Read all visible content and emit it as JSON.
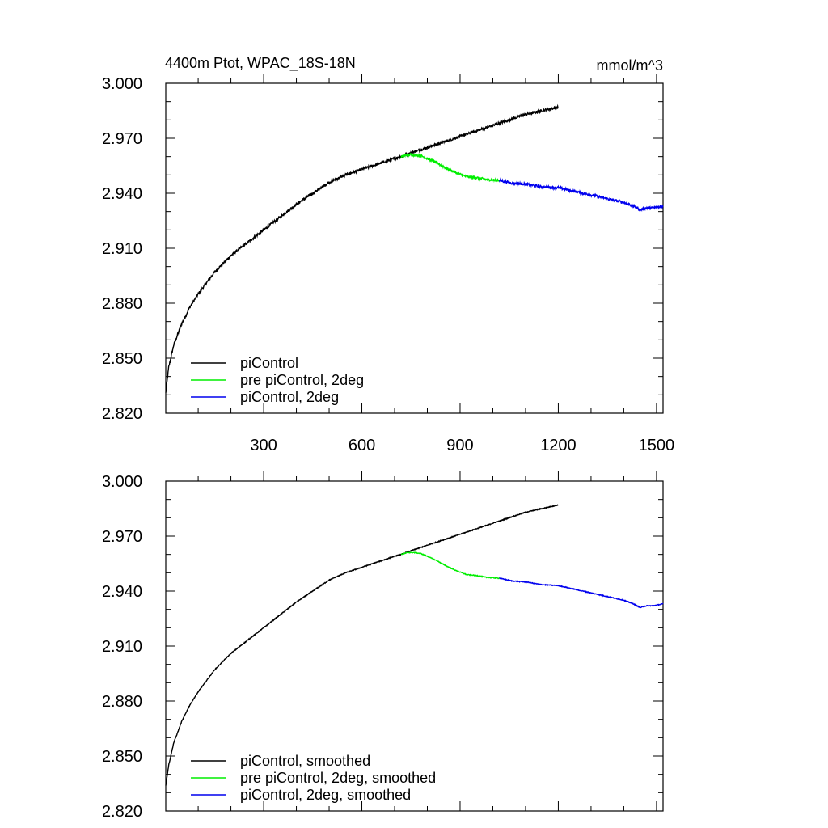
{
  "chart_data": [
    {
      "type": "line",
      "title": "4400m Ptot, WPAC_18S-18N",
      "units": "mmol/m^3",
      "xlim": [
        1,
        1520
      ],
      "ylim": [
        2.82,
        3.0
      ],
      "xticks": [
        300,
        600,
        900,
        1200,
        1500
      ],
      "xtick_labels": [
        "300",
        "600",
        "900",
        "1200",
        "1500"
      ],
      "yticks": [
        2.82,
        2.85,
        2.88,
        2.91,
        2.94,
        2.97,
        3.0
      ],
      "ytick_labels": [
        "2.820",
        "2.850",
        "2.880",
        "2.910",
        "2.940",
        "2.970",
        "3.000"
      ],
      "legend_position": "bottom-left",
      "noise": 0.0007,
      "series": [
        {
          "name": "piControl",
          "color": "#000000",
          "x": [
            1,
            10,
            25,
            50,
            75,
            100,
            150,
            200,
            250,
            300,
            350,
            400,
            450,
            500,
            550,
            600,
            650,
            700,
            720,
            750,
            800,
            850,
            900,
            950,
            1000,
            1050,
            1100,
            1150,
            1200
          ],
          "y": [
            2.831,
            2.845,
            2.857,
            2.869,
            2.878,
            2.885,
            2.897,
            2.906,
            2.913,
            2.92,
            2.927,
            2.934,
            2.94,
            2.946,
            2.95,
            2.953,
            2.956,
            2.959,
            2.96,
            2.962,
            2.965,
            2.968,
            2.971,
            2.974,
            2.977,
            2.98,
            2.983,
            2.985,
            2.987
          ]
        },
        {
          "name": "pre piControl, 2deg",
          "color": "#00ee00",
          "x": [
            720,
            740,
            760,
            780,
            800,
            830,
            860,
            890,
            920,
            950,
            980,
            1020
          ],
          "y": [
            2.96,
            2.961,
            2.961,
            2.9605,
            2.959,
            2.9565,
            2.9535,
            2.951,
            2.949,
            2.9485,
            2.9475,
            2.947
          ]
        },
        {
          "name": "piControl, 2deg",
          "color": "#0000ee",
          "x": [
            1020,
            1060,
            1100,
            1150,
            1200,
            1250,
            1300,
            1350,
            1400,
            1430,
            1450,
            1470,
            1490,
            1520
          ],
          "y": [
            2.947,
            2.9455,
            2.945,
            2.9435,
            2.943,
            2.941,
            2.939,
            2.937,
            2.935,
            2.933,
            2.931,
            2.932,
            2.932,
            2.933
          ]
        }
      ]
    },
    {
      "type": "line",
      "title": "",
      "units": "",
      "xlim": [
        1,
        1520
      ],
      "ylim": [
        2.82,
        3.0
      ],
      "xticks": [
        300,
        600,
        900,
        1200,
        1500
      ],
      "xtick_labels": [],
      "yticks": [
        2.82,
        2.85,
        2.88,
        2.91,
        2.94,
        2.97,
        3.0
      ],
      "ytick_labels": [
        "2.820",
        "2.850",
        "2.880",
        "2.910",
        "2.940",
        "2.970",
        "3.000"
      ],
      "legend_position": "bottom-left",
      "noise": 0.0002,
      "series": [
        {
          "name": "piControl, smoothed",
          "color": "#000000",
          "x": [
            1,
            10,
            25,
            50,
            75,
            100,
            150,
            200,
            250,
            300,
            350,
            400,
            450,
            500,
            550,
            600,
            650,
            700,
            720,
            750,
            800,
            850,
            900,
            950,
            1000,
            1050,
            1100,
            1150,
            1200
          ],
          "y": [
            2.834,
            2.845,
            2.857,
            2.869,
            2.878,
            2.885,
            2.897,
            2.906,
            2.913,
            2.92,
            2.927,
            2.934,
            2.94,
            2.946,
            2.95,
            2.953,
            2.956,
            2.959,
            2.96,
            2.962,
            2.965,
            2.968,
            2.971,
            2.974,
            2.977,
            2.98,
            2.983,
            2.985,
            2.987
          ]
        },
        {
          "name": "pre piControl, 2deg, smoothed",
          "color": "#00ee00",
          "x": [
            720,
            740,
            760,
            780,
            800,
            830,
            860,
            890,
            920,
            950,
            980,
            1020
          ],
          "y": [
            2.96,
            2.961,
            2.961,
            2.9605,
            2.959,
            2.9565,
            2.9535,
            2.951,
            2.949,
            2.9485,
            2.9475,
            2.947
          ]
        },
        {
          "name": "piControl, 2deg, smoothed",
          "color": "#0000ee",
          "x": [
            1020,
            1060,
            1100,
            1150,
            1200,
            1250,
            1300,
            1350,
            1400,
            1430,
            1450,
            1470,
            1490,
            1520
          ],
          "y": [
            2.947,
            2.9455,
            2.945,
            2.9435,
            2.943,
            2.941,
            2.939,
            2.937,
            2.935,
            2.933,
            2.931,
            2.932,
            2.932,
            2.933
          ]
        }
      ]
    }
  ]
}
